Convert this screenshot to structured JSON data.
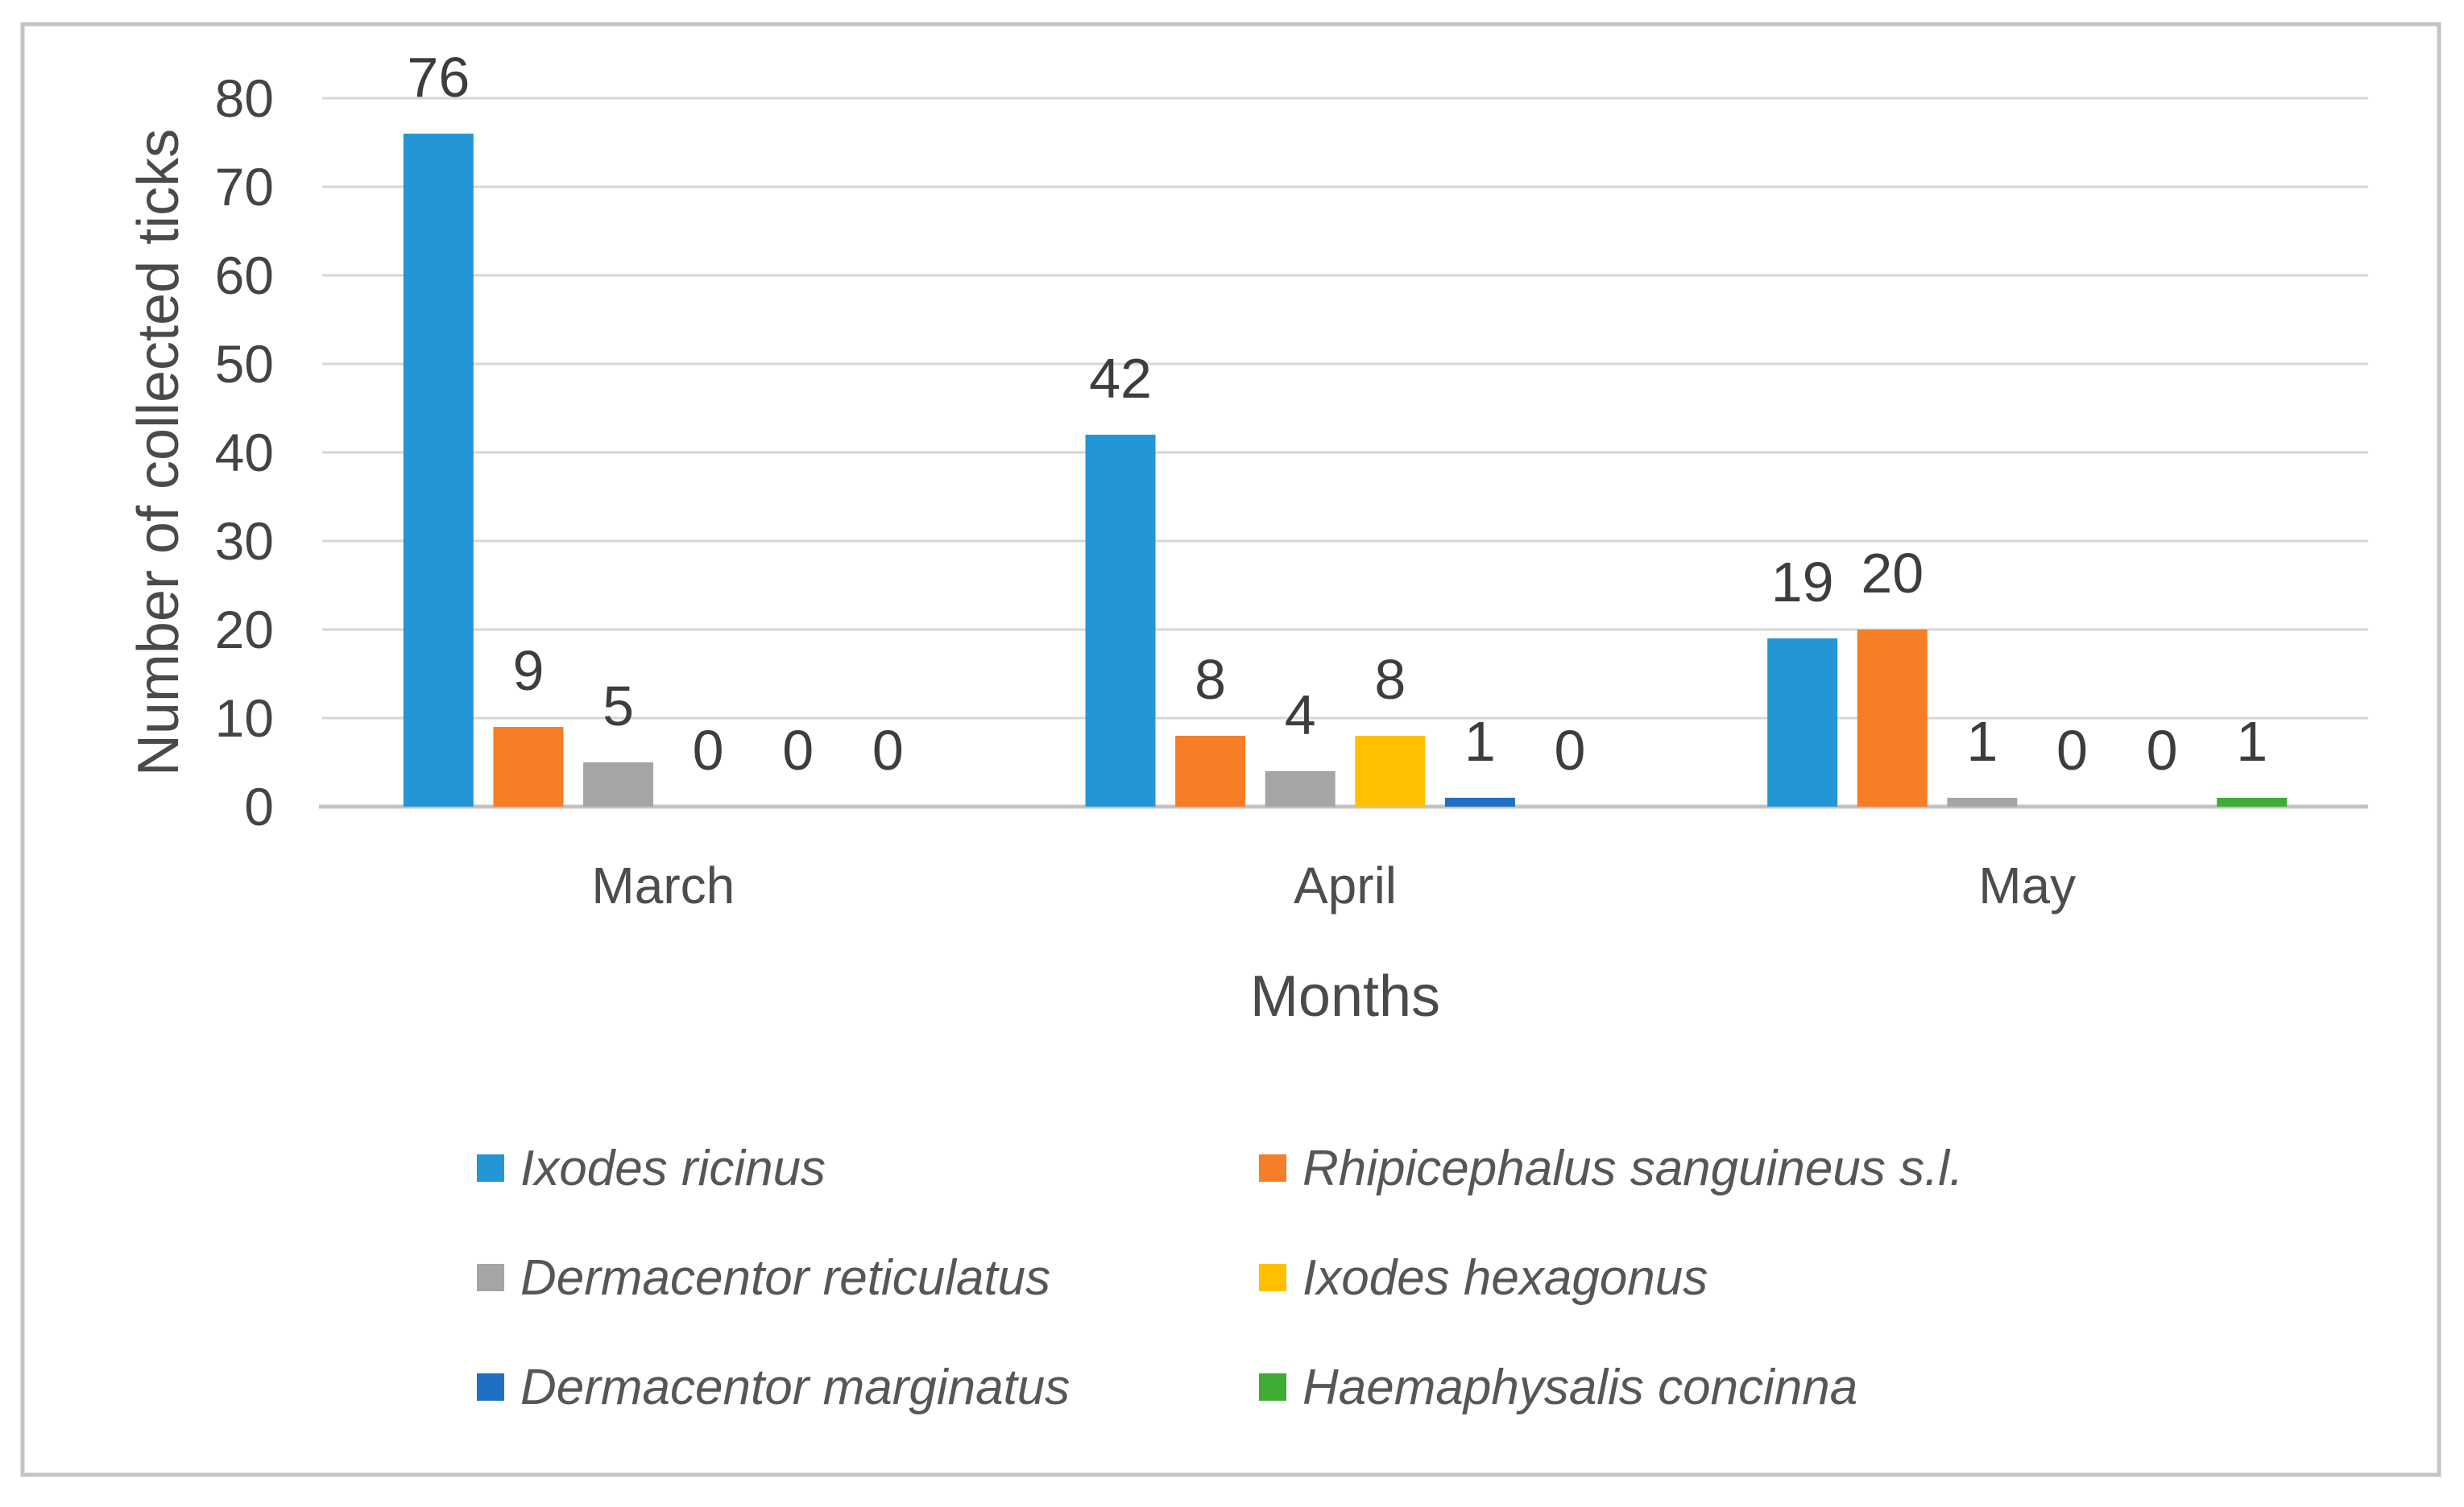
{
  "chart_data": {
    "type": "bar",
    "title": "",
    "xlabel": "Months",
    "ylabel": "Number of collected ticks",
    "ylim": [
      0,
      80
    ],
    "yticks": [
      0,
      10,
      20,
      30,
      40,
      50,
      60,
      70,
      80
    ],
    "categories": [
      "March",
      "April",
      "May"
    ],
    "series": [
      {
        "name": "Ixodes ricinus",
        "color": "#2496D5",
        "values": [
          76,
          42,
          19
        ]
      },
      {
        "name": "Rhipicephalus sanguineus s.l.",
        "color": "#F57E26",
        "values": [
          9,
          8,
          20
        ]
      },
      {
        "name": "Dermacentor reticulatus",
        "color": "#A5A5A5",
        "values": [
          5,
          4,
          1
        ]
      },
      {
        "name": "Ixodes hexagonus",
        "color": "#FFC000",
        "values": [
          0,
          8,
          0
        ]
      },
      {
        "name": "Dermacentor marginatus",
        "color": "#1F6FC5",
        "values": [
          0,
          1,
          0
        ]
      },
      {
        "name": "Haemaphysalis concinna",
        "color": "#3FAC35",
        "values": [
          0,
          0,
          1
        ]
      }
    ],
    "data_labels": true,
    "grid": true,
    "legend_position": "bottom-two-columns"
  },
  "colors": {
    "background": "#FFFFFF",
    "frame_border": "#C4C4C4",
    "gridline": "#D6D6D6",
    "axis_line": "#C3C3C3",
    "value_label_text": "#3D3D3D",
    "axis_tick_text": "#444444",
    "axis_title_text": "#4A4A4A",
    "month_label_text": "#4D4D4D",
    "legend_text": "#565656"
  }
}
